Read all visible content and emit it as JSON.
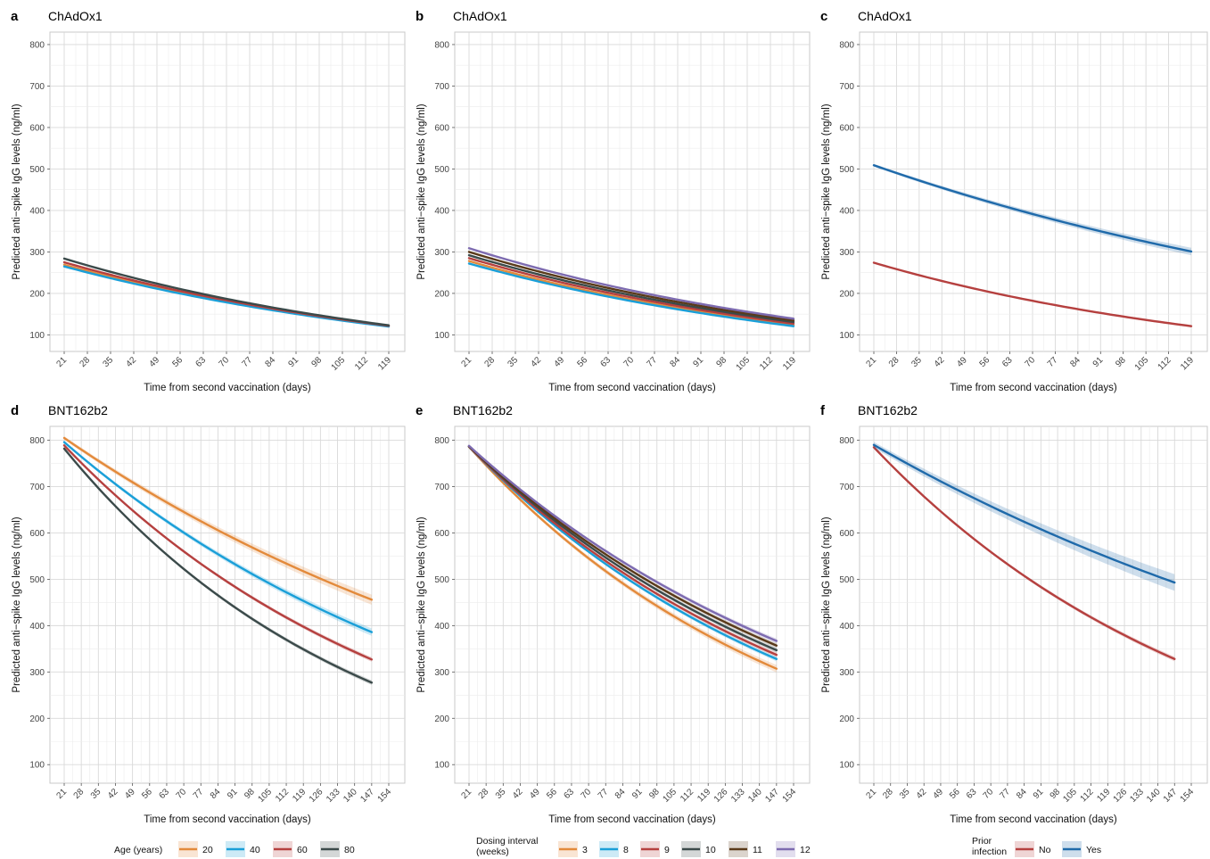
{
  "colors": {
    "grid": "#d9d9d9",
    "panel_border": "#c8c8c8",
    "tick_text": "#444444",
    "age_20": "#e38a3b",
    "age_40": "#1a9fd8",
    "age_60": "#b5403f",
    "age_80": "#3b4a4a",
    "int_3": "#e38a3b",
    "int_8": "#1a9fd8",
    "int_9": "#b5403f",
    "int_10": "#3b4a4a",
    "int_11": "#5a3a1a",
    "int_12": "#7d6bb0",
    "prior_no": "#b5403f",
    "prior_yes": "#1f6aaa"
  },
  "legends": [
    {
      "title": "Age (years)",
      "items": [
        {
          "label": "20",
          "color_key": "age_20"
        },
        {
          "label": "40",
          "color_key": "age_40"
        },
        {
          "label": "60",
          "color_key": "age_60"
        },
        {
          "label": "80",
          "color_key": "age_80"
        }
      ]
    },
    {
      "title": "Dosing interval (weeks)",
      "items": [
        {
          "label": "3",
          "color_key": "int_3"
        },
        {
          "label": "8",
          "color_key": "int_8"
        },
        {
          "label": "9",
          "color_key": "int_9"
        },
        {
          "label": "10",
          "color_key": "int_10"
        },
        {
          "label": "11",
          "color_key": "int_11"
        },
        {
          "label": "12",
          "color_key": "int_12"
        }
      ]
    },
    {
      "title": "Prior infection",
      "items": [
        {
          "label": "No",
          "color_key": "prior_no"
        },
        {
          "label": "Yes",
          "color_key": "prior_yes"
        }
      ]
    }
  ],
  "chart_data": [
    {
      "type": "line",
      "panel_letter": "a",
      "title": "ChAdOx1",
      "xlabel": "Time from second vaccination (days)",
      "ylabel": "Predicted anti−spike IgG levels (ng/ml)",
      "xlim": [
        21,
        119
      ],
      "ylim": [
        60,
        830
      ],
      "xticks": [
        21,
        28,
        35,
        42,
        49,
        56,
        63,
        70,
        77,
        84,
        91,
        98,
        105,
        112,
        119
      ],
      "yticks": [
        100,
        200,
        300,
        400,
        500,
        600,
        700,
        800
      ],
      "grid": true,
      "x_start": 21,
      "x_end": 119,
      "series": [
        {
          "name": "20",
          "color_key": "age_20",
          "start": 269,
          "end": 121,
          "band": 3
        },
        {
          "name": "40",
          "color_key": "age_40",
          "start": 265,
          "end": 120,
          "band": 3
        },
        {
          "name": "60",
          "color_key": "age_60",
          "start": 275,
          "end": 122,
          "band": 3
        },
        {
          "name": "80",
          "color_key": "age_80",
          "start": 284,
          "end": 123,
          "band": 3
        }
      ]
    },
    {
      "type": "line",
      "panel_letter": "b",
      "title": "ChAdOx1",
      "xlabel": "Time from second vaccination (days)",
      "ylabel": "Predicted anti−spike IgG levels (ng/ml)",
      "xlim": [
        21,
        119
      ],
      "ylim": [
        60,
        830
      ],
      "xticks": [
        21,
        28,
        35,
        42,
        49,
        56,
        63,
        70,
        77,
        84,
        91,
        98,
        105,
        112,
        119
      ],
      "yticks": [
        100,
        200,
        300,
        400,
        500,
        600,
        700,
        800
      ],
      "grid": true,
      "x_start": 21,
      "x_end": 119,
      "series": [
        {
          "name": "3",
          "color_key": "int_3",
          "start": 278,
          "end": 123,
          "band": 3
        },
        {
          "name": "8",
          "color_key": "int_8",
          "start": 272,
          "end": 121,
          "band": 3
        },
        {
          "name": "9",
          "color_key": "int_9",
          "start": 285,
          "end": 127,
          "band": 3
        },
        {
          "name": "10",
          "color_key": "int_10",
          "start": 292,
          "end": 131,
          "band": 3
        },
        {
          "name": "11",
          "color_key": "int_11",
          "start": 300,
          "end": 135,
          "band": 3
        },
        {
          "name": "12",
          "color_key": "int_12",
          "start": 309,
          "end": 139,
          "band": 3
        }
      ]
    },
    {
      "type": "line",
      "panel_letter": "c",
      "title": "ChAdOx1",
      "xlabel": "Time from second vaccination (days)",
      "ylabel": "Predicted anti−spike IgG levels (ng/ml)",
      "xlim": [
        21,
        119
      ],
      "ylim": [
        60,
        830
      ],
      "xticks": [
        21,
        28,
        35,
        42,
        49,
        56,
        63,
        70,
        77,
        84,
        91,
        98,
        105,
        112,
        119
      ],
      "yticks": [
        100,
        200,
        300,
        400,
        500,
        600,
        700,
        800
      ],
      "grid": true,
      "x_start": 21,
      "x_end": 119,
      "series": [
        {
          "name": "No",
          "color_key": "prior_no",
          "start": 274,
          "end": 121,
          "band": 3
        },
        {
          "name": "Yes",
          "color_key": "prior_yes",
          "start": 509,
          "end": 301,
          "band": 9
        }
      ]
    },
    {
      "type": "line",
      "panel_letter": "d",
      "title": "BNT162b2",
      "xlabel": "Time from second vaccination (days)",
      "ylabel": "Predicted anti−spike IgG levels (ng/ml)",
      "xlim": [
        21,
        154
      ],
      "ylim": [
        60,
        830
      ],
      "xticks": [
        21,
        28,
        35,
        42,
        49,
        56,
        63,
        70,
        77,
        84,
        91,
        98,
        105,
        112,
        119,
        126,
        133,
        140,
        147,
        154
      ],
      "yticks": [
        100,
        200,
        300,
        400,
        500,
        600,
        700,
        800
      ],
      "grid": true,
      "x_start": 21,
      "x_end": 147,
      "series": [
        {
          "name": "20",
          "color_key": "age_20",
          "start": 805,
          "end": 456,
          "band": 11
        },
        {
          "name": "40",
          "color_key": "age_40",
          "start": 796,
          "end": 386,
          "band": 8
        },
        {
          "name": "60",
          "color_key": "age_60",
          "start": 789,
          "end": 327,
          "band": 5
        },
        {
          "name": "80",
          "color_key": "age_80",
          "start": 782,
          "end": 277,
          "band": 5
        }
      ]
    },
    {
      "type": "line",
      "panel_letter": "e",
      "title": "BNT162b2",
      "xlabel": "Time from second vaccination (days)",
      "ylabel": "Predicted anti−spike IgG levels (ng/ml)",
      "xlim": [
        21,
        154
      ],
      "ylim": [
        60,
        830
      ],
      "xticks": [
        21,
        28,
        35,
        42,
        49,
        56,
        63,
        70,
        77,
        84,
        91,
        98,
        105,
        112,
        119,
        126,
        133,
        140,
        147,
        154
      ],
      "yticks": [
        100,
        200,
        300,
        400,
        500,
        600,
        700,
        800
      ],
      "grid": true,
      "x_start": 21,
      "x_end": 147,
      "series": [
        {
          "name": "3",
          "color_key": "int_3",
          "start": 786,
          "end": 307,
          "band": 8
        },
        {
          "name": "8",
          "color_key": "int_8",
          "start": 786,
          "end": 328,
          "band": 5
        },
        {
          "name": "9",
          "color_key": "int_9",
          "start": 786,
          "end": 337,
          "band": 5
        },
        {
          "name": "10",
          "color_key": "int_10",
          "start": 787,
          "end": 347,
          "band": 5
        },
        {
          "name": "11",
          "color_key": "int_11",
          "start": 787,
          "end": 357,
          "band": 5
        },
        {
          "name": "12",
          "color_key": "int_12",
          "start": 788,
          "end": 367,
          "band": 5
        }
      ]
    },
    {
      "type": "line",
      "panel_letter": "f",
      "title": "BNT162b2",
      "xlabel": "Time from second vaccination (days)",
      "ylabel": "Predicted anti−spike IgG levels (ng/ml)",
      "xlim": [
        21,
        154
      ],
      "ylim": [
        60,
        830
      ],
      "xticks": [
        21,
        28,
        35,
        42,
        49,
        56,
        63,
        70,
        77,
        84,
        91,
        98,
        105,
        112,
        119,
        126,
        133,
        140,
        147,
        154
      ],
      "yticks": [
        100,
        200,
        300,
        400,
        500,
        600,
        700,
        800
      ],
      "grid": true,
      "x_start": 21,
      "x_end": 147,
      "series": [
        {
          "name": "No",
          "color_key": "prior_no",
          "start": 785,
          "end": 328,
          "band": 5
        },
        {
          "name": "Yes",
          "color_key": "prior_yes",
          "start": 790,
          "end": 493,
          "band": 18
        }
      ]
    }
  ]
}
